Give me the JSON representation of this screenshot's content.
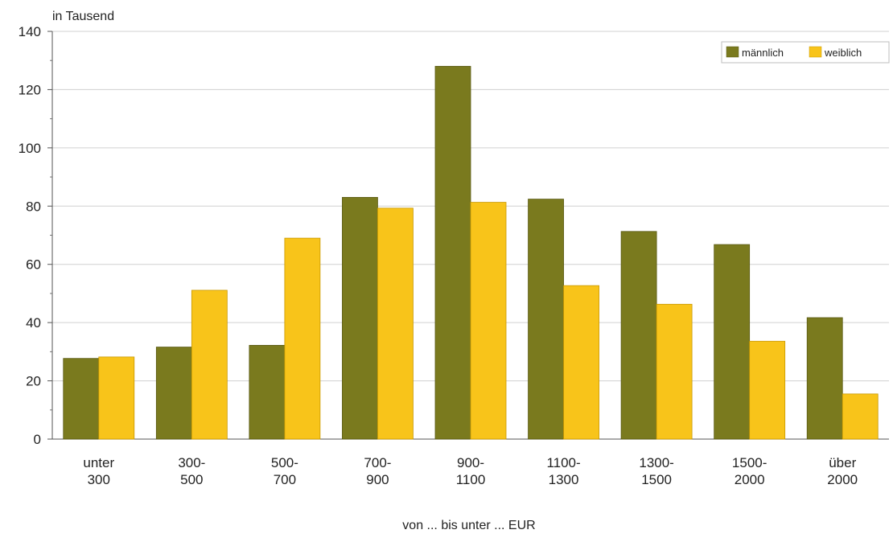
{
  "chart_data": {
    "type": "bar",
    "unit_label": "in Tausend",
    "xlabel": "von ... bis unter ... EUR",
    "ylabel": "",
    "ylim": [
      0,
      140
    ],
    "yticks": [
      0,
      20,
      40,
      60,
      80,
      100,
      120,
      140
    ],
    "minor_ticks": true,
    "grid": true,
    "legend_position": "top-right",
    "categories": [
      [
        "unter",
        "300"
      ],
      [
        "300-",
        "500"
      ],
      [
        "500-",
        "700"
      ],
      [
        "700-",
        "900"
      ],
      [
        "900-",
        "1100"
      ],
      [
        "1100-",
        "1300"
      ],
      [
        "1300-",
        "1500"
      ],
      [
        "1500-",
        "2000"
      ],
      [
        "über",
        "2000"
      ]
    ],
    "series": [
      {
        "name": "männlich",
        "color": "#7a7a1e",
        "values": [
          27.7,
          31.6,
          32.2,
          83,
          128,
          82.4,
          71.3,
          66.8,
          41.7
        ]
      },
      {
        "name": "weiblich",
        "color": "#f8c41a",
        "values": [
          28.2,
          51.1,
          69,
          79.3,
          81.3,
          52.7,
          46.3,
          33.6,
          15.5
        ]
      }
    ]
  }
}
